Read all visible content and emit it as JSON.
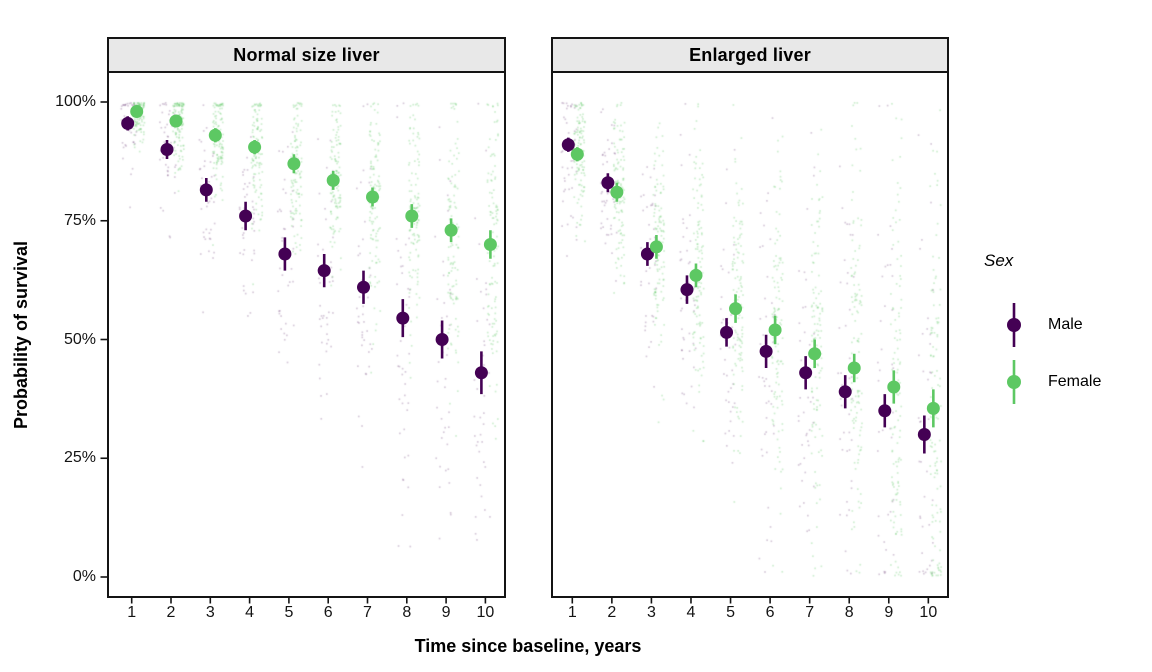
{
  "chart_data": {
    "type": "scatter",
    "title": "",
    "xlabel": "Time since baseline, years",
    "ylabel": "Probability of survival",
    "x": [
      1,
      2,
      3,
      4,
      5,
      6,
      7,
      8,
      9,
      10
    ],
    "x_tick_labels": [
      "1",
      "2",
      "3",
      "4",
      "5",
      "6",
      "7",
      "8",
      "9",
      "10"
    ],
    "ylim": [
      0,
      100
    ],
    "y_tick_values": [
      0,
      25,
      50,
      75,
      100
    ],
    "y_tick_labels": [
      "0%",
      "25%",
      "50%",
      "75%",
      "100%"
    ],
    "grid": "off",
    "units": "percent",
    "legend": {
      "title": "Sex",
      "position": "right",
      "entries": [
        {
          "label": "Male",
          "color": "#440154"
        },
        {
          "label": "Female",
          "color": "#5DC863"
        }
      ]
    },
    "facets": [
      {
        "title": "Normal size liver",
        "series": [
          {
            "name": "Male",
            "color": "#440154",
            "values": [
              95.5,
              90,
              81.5,
              76,
              68,
              64.5,
              61,
              54.5,
              50,
              43
            ],
            "ci_half_width": [
              1.5,
              2,
              2.5,
              3,
              3.5,
              3.5,
              3.5,
              4,
              4,
              4.5
            ]
          },
          {
            "name": "Female",
            "color": "#5DC863",
            "values": [
              98,
              96,
              93,
              90.5,
              87,
              83.5,
              80,
              76,
              73,
              70
            ],
            "ci_half_width": [
              1,
              1,
              1.5,
              1.5,
              2,
              2,
              2,
              2.5,
              2.5,
              3
            ]
          }
        ]
      },
      {
        "title": "Enlarged liver",
        "series": [
          {
            "name": "Male",
            "color": "#440154",
            "values": [
              91,
              83,
              68,
              60.5,
              51.5,
              47.5,
              43,
              39,
              35,
              30
            ],
            "ci_half_width": [
              1.5,
              2,
              2.5,
              3,
              3,
              3.5,
              3.5,
              3.5,
              3.5,
              4
            ]
          },
          {
            "name": "Female",
            "color": "#5DC863",
            "values": [
              89,
              81,
              69.5,
              63.5,
              56.5,
              52,
              47,
              44,
              40,
              35.5
            ],
            "ci_half_width": [
              1.5,
              2,
              2.5,
              2.5,
              3,
              3,
              3,
              3,
              3.5,
              4
            ]
          }
        ]
      }
    ],
    "background_scatter": {
      "description": "faint jittered individual-draw points behind each summary estimate",
      "per_group_count": {
        "Male": 42,
        "Female": 115
      },
      "alpha": {
        "Male": 0.22,
        "Female": 0.3
      },
      "sd_by_facet": [
        {
          "Male": {
            "base": 4.0,
            "slope": 2.0
          },
          "Female": {
            "base": 2.2,
            "slope": 1.4
          }
        },
        {
          "Male": {
            "base": 6.0,
            "slope": 2.4
          },
          "Female": {
            "base": 5.0,
            "slope": 2.4
          }
        }
      ]
    }
  }
}
